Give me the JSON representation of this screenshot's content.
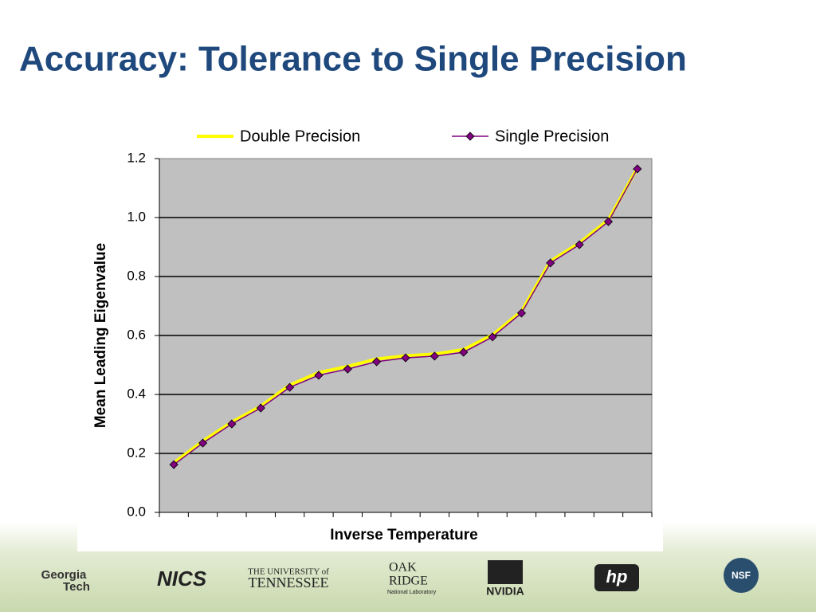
{
  "slide": {
    "title": "Accuracy: Tolerance to Single Precision"
  },
  "logos": [
    "Georgia",
    "Tech",
    "NICS",
    "THE UNIVERSITY of",
    "TENNESSEE",
    "OAK",
    "RIDGE",
    "National Laboratory",
    "NVIDIA",
    "hp",
    "NSF"
  ],
  "chart_data": {
    "type": "line",
    "xlabel": "Inverse Temperature",
    "ylabel": "Mean Leading Eigenvalue",
    "categories": [
      null,
      null,
      null,
      null,
      null,
      null,
      null,
      null,
      null,
      null,
      null,
      null,
      null,
      null,
      null,
      null,
      null
    ],
    "series": [
      {
        "name": "Double Precision",
        "color": "#ffff00",
        "values": [
          0.168,
          0.242,
          0.306,
          0.36,
          0.432,
          0.474,
          0.495,
          0.52,
          0.531,
          0.537,
          0.552,
          0.602,
          0.682,
          0.852,
          0.914,
          0.992,
          1.168
        ]
      },
      {
        "name": "Single Precision",
        "color": "#800080",
        "values": [
          0.162,
          0.235,
          0.3,
          0.354,
          0.424,
          0.465,
          0.486,
          0.511,
          0.524,
          0.53,
          0.543,
          0.595,
          0.676,
          0.846,
          0.908,
          0.986,
          1.165
        ]
      }
    ],
    "ylim": [
      0,
      1.2
    ],
    "yticks": [
      {
        "value": 0,
        "label": "0.0"
      },
      0.2,
      0.4,
      0.6,
      0.8,
      {
        "value": 1,
        "label": "1.0"
      },
      1.2
    ],
    "grid": true,
    "legend": "top"
  }
}
